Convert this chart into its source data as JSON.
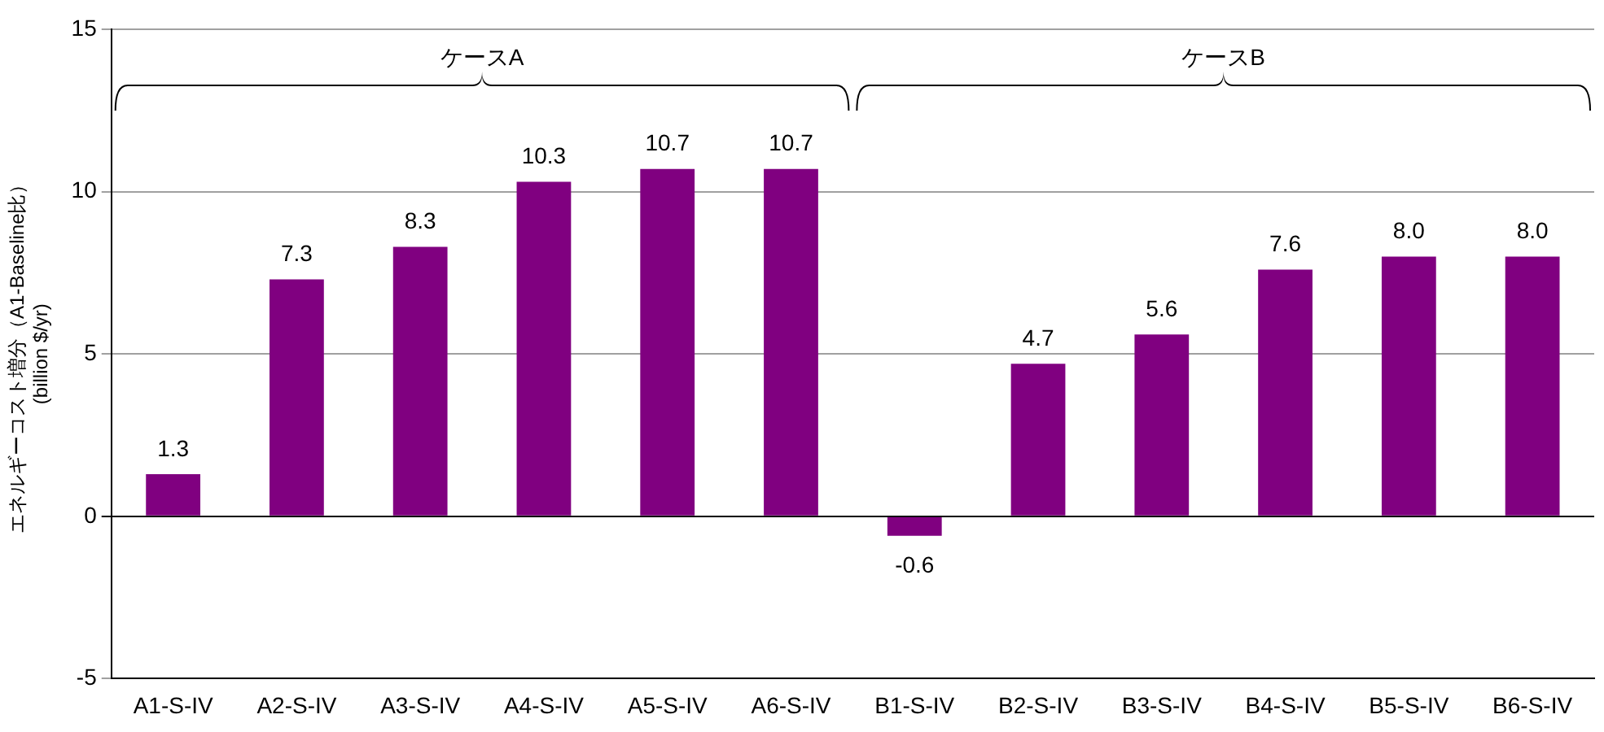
{
  "chart_data": {
    "type": "bar",
    "categories": [
      "A1-S-IV",
      "A2-S-IV",
      "A3-S-IV",
      "A4-S-IV",
      "A5-S-IV",
      "A6-S-IV",
      "B1-S-IV",
      "B2-S-IV",
      "B3-S-IV",
      "B4-S-IV",
      "B5-S-IV",
      "B6-S-IV"
    ],
    "values": [
      1.3,
      7.3,
      8.3,
      10.3,
      10.7,
      10.7,
      -0.6,
      4.7,
      5.6,
      7.6,
      8.0,
      8.0
    ],
    "value_labels": [
      "1.3",
      "7.3",
      "8.3",
      "10.3",
      "10.7",
      "10.7",
      "-0.6",
      "4.7",
      "5.6",
      "7.6",
      "8.0",
      "8.0"
    ],
    "color": "#800080",
    "ylabel": "エネルギーコスト増分（A1-Baseline比）\n(billion $/yr)",
    "ylim": [
      -5,
      15
    ],
    "yticks": [
      -5,
      0,
      5,
      10,
      15
    ],
    "grid": "y",
    "legend": false,
    "annotations": [
      "ケースA",
      "ケースB"
    ]
  }
}
